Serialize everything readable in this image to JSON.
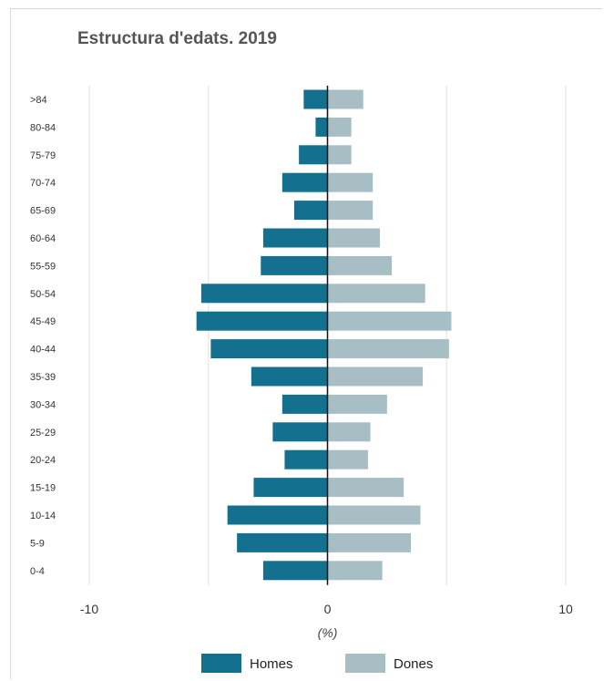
{
  "chart_data": {
    "type": "bar",
    "orientation": "horizontal",
    "layout": "population-pyramid",
    "title": "Estructura d'edats. 2019",
    "xlabel": "(%)",
    "ylabel": "",
    "xlim": [
      -10,
      10
    ],
    "x_ticks": [
      -10,
      0,
      10
    ],
    "x_tick_labels": [
      "-10",
      "0",
      "10"
    ],
    "grid": true,
    "legend_position": "bottom",
    "categories": [
      ">84",
      "80-84",
      "75-79",
      "70-74",
      "65-69",
      "60-64",
      "55-59",
      "50-54",
      "45-49",
      "40-44",
      "35-39",
      "30-34",
      "25-29",
      "20-24",
      "15-19",
      "10-14",
      "5-9",
      "0-4"
    ],
    "series": [
      {
        "name": "Homes",
        "color": "#13718f",
        "values": [
          -1.0,
          -0.5,
          -1.2,
          -1.9,
          -1.4,
          -2.7,
          -2.8,
          -5.3,
          -5.5,
          -4.9,
          -3.2,
          -1.9,
          -2.3,
          -1.8,
          -3.1,
          -4.2,
          -3.8,
          -2.7
        ]
      },
      {
        "name": "Dones",
        "color": "#a7bfc4",
        "values": [
          1.5,
          1.0,
          1.0,
          1.9,
          1.9,
          2.2,
          2.7,
          4.1,
          5.2,
          5.1,
          4.0,
          2.5,
          1.8,
          1.7,
          3.2,
          3.9,
          3.5,
          2.3
        ]
      }
    ]
  }
}
